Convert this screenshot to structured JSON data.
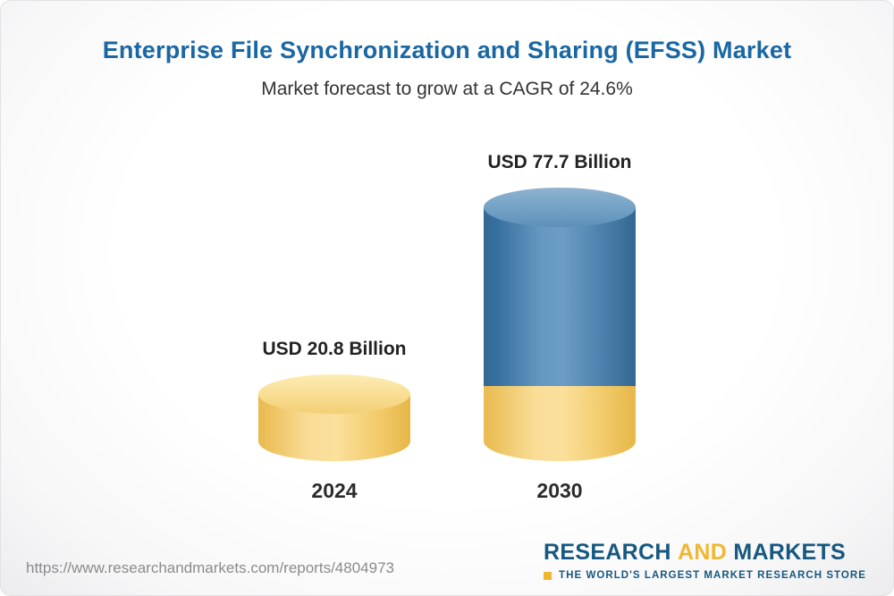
{
  "chart_data": {
    "type": "bar",
    "title": "Enterprise File Synchronization and Sharing (EFSS) Market",
    "subtitle": "Market forecast to grow at a CAGR of 24.6%",
    "cagr_percent": 24.6,
    "unit": "USD Billion",
    "categories": [
      "2024",
      "2030"
    ],
    "values": [
      20.8,
      77.7
    ],
    "value_labels": [
      "USD 20.8 Billion",
      "USD 77.7 Billion"
    ],
    "series": [
      {
        "name": "2024 base",
        "color": "#f6cf6d",
        "values": [
          20.8,
          20.8
        ]
      },
      {
        "name": "growth to 2030",
        "color": "#4a7fae",
        "values": [
          0,
          56.9
        ]
      }
    ],
    "ylim": [
      0,
      80
    ],
    "grid": false,
    "legend": "none",
    "bar_shape": "3d-cylinder"
  },
  "footer": {
    "url": "https://www.researchandmarkets.com/reports/4804973",
    "logo": {
      "word1": "RESEARCH",
      "word2": "AND",
      "word3": "MARKETS",
      "tagline": "THE WORLD'S LARGEST MARKET RESEARCH STORE"
    }
  },
  "colors": {
    "title_blue": "#1a67a3",
    "bar_yellow": "#f6cf6d",
    "bar_blue": "#4a7fae",
    "logo_blue": "#16587f",
    "logo_yellow": "#f0b832"
  }
}
